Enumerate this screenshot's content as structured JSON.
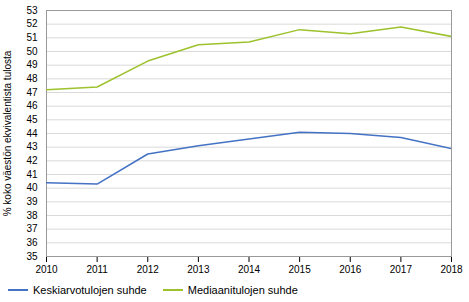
{
  "chart_data": {
    "type": "line",
    "ylabel": "% koko väestön ekvivalentista tulosta",
    "x": [
      2010,
      2011,
      2012,
      2013,
      2014,
      2015,
      2016,
      2017,
      2018
    ],
    "series": [
      {
        "name": "Keskiarvotulojen suhde",
        "color": "#4472c4",
        "values": [
          40.4,
          40.3,
          42.5,
          43.1,
          43.6,
          44.1,
          44.0,
          43.7,
          42.9
        ]
      },
      {
        "name": "Mediaanitulojen suhde",
        "color": "#9dc22d",
        "values": [
          47.2,
          47.4,
          49.3,
          50.5,
          50.7,
          51.6,
          51.3,
          51.8,
          51.1
        ]
      }
    ],
    "xlim": [
      2010,
      2018
    ],
    "xticks": [
      2010,
      2011,
      2012,
      2013,
      2014,
      2015,
      2016,
      2017,
      2018
    ],
    "ylim": [
      35,
      53
    ],
    "yticks": [
      35,
      36,
      37,
      38,
      39,
      40,
      41,
      42,
      43,
      44,
      45,
      46,
      47,
      48,
      49,
      50,
      51,
      52,
      53
    ],
    "grid": true,
    "legend": "lower left"
  }
}
